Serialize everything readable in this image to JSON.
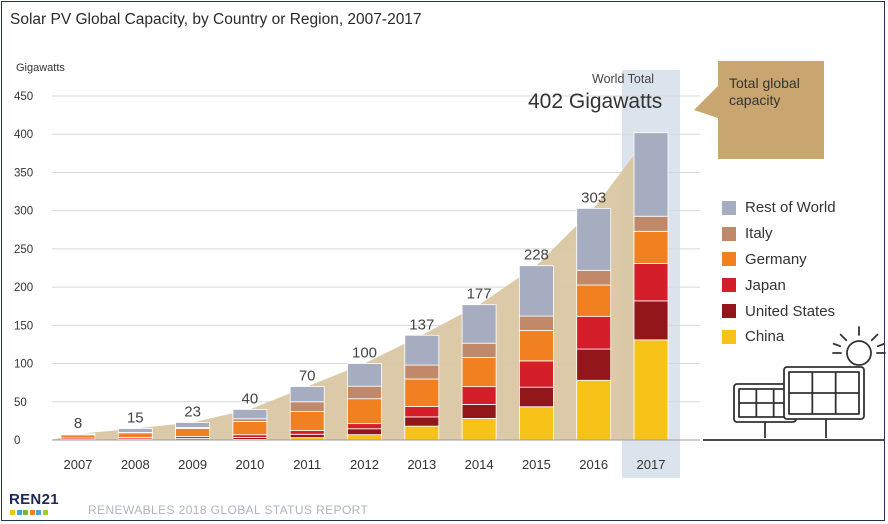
{
  "chart_data": {
    "type": "bar",
    "stacked": true,
    "title": "Solar PV Global Capacity, by Country or Region, 2007-2017",
    "ylabel": "Gigawatts",
    "ylim": [
      0,
      450
    ],
    "yticks": [
      0,
      50,
      100,
      150,
      200,
      250,
      300,
      350,
      400,
      450
    ],
    "grid": true,
    "legend_position": "right",
    "categories": [
      "2007",
      "2008",
      "2009",
      "2010",
      "2011",
      "2012",
      "2013",
      "2014",
      "2015",
      "2016",
      "2017"
    ],
    "totals": [
      8,
      15,
      23,
      40,
      70,
      100,
      137,
      177,
      228,
      303,
      402
    ],
    "series": [
      {
        "name": "China",
        "color": "#f7c319",
        "values": [
          0.1,
          0.1,
          0.4,
          0.8,
          3.1,
          7.0,
          18.1,
          28.2,
          43.5,
          78.1,
          131.0
        ]
      },
      {
        "name": "United States",
        "color": "#93161a",
        "values": [
          0.6,
          1.2,
          1.6,
          2.5,
          4.4,
          7.7,
          12.1,
          18.3,
          25.6,
          40.9,
          51.0
        ]
      },
      {
        "name": "Japan",
        "color": "#d41e2a",
        "values": [
          1.9,
          2.1,
          2.6,
          3.6,
          4.9,
          6.7,
          13.6,
          23.3,
          34.4,
          42.8,
          49.0
        ]
      },
      {
        "name": "Germany",
        "color": "#f08020",
        "values": [
          4.2,
          6.0,
          10.6,
          17.4,
          24.8,
          32.6,
          36.0,
          38.2,
          39.7,
          40.9,
          42.0
        ]
      },
      {
        "name": "Italy",
        "color": "#c08a6a",
        "values": [
          0.1,
          0.4,
          1.2,
          3.5,
          12.8,
          16.4,
          18.2,
          18.6,
          18.9,
          19.3,
          19.7
        ]
      },
      {
        "name": "Rest of World",
        "color": "#a7adc1",
        "values": [
          1.1,
          5.2,
          6.6,
          12.2,
          20.0,
          29.6,
          39.0,
          50.4,
          65.9,
          81.0,
          109.3
        ]
      }
    ],
    "annotations": {
      "world_total_label": "World Total",
      "world_total_value": "402 Gigawatts",
      "callout": "Total global capacity"
    }
  },
  "colors": {
    "area": "#d9c6a2",
    "callout": "#c9a670",
    "highlight_column": "#dbe4ec",
    "grid": "#d8d8d8",
    "frame": "#1f3552"
  },
  "legend_order": [
    "Rest of World",
    "Italy",
    "Germany",
    "Japan",
    "United States",
    "China"
  ],
  "footer": {
    "logo": "REN21",
    "report": "RENEWABLES 2018 GLOBAL STATUS REPORT"
  },
  "icons": [
    "sun-icon",
    "solar-panel-icon"
  ]
}
